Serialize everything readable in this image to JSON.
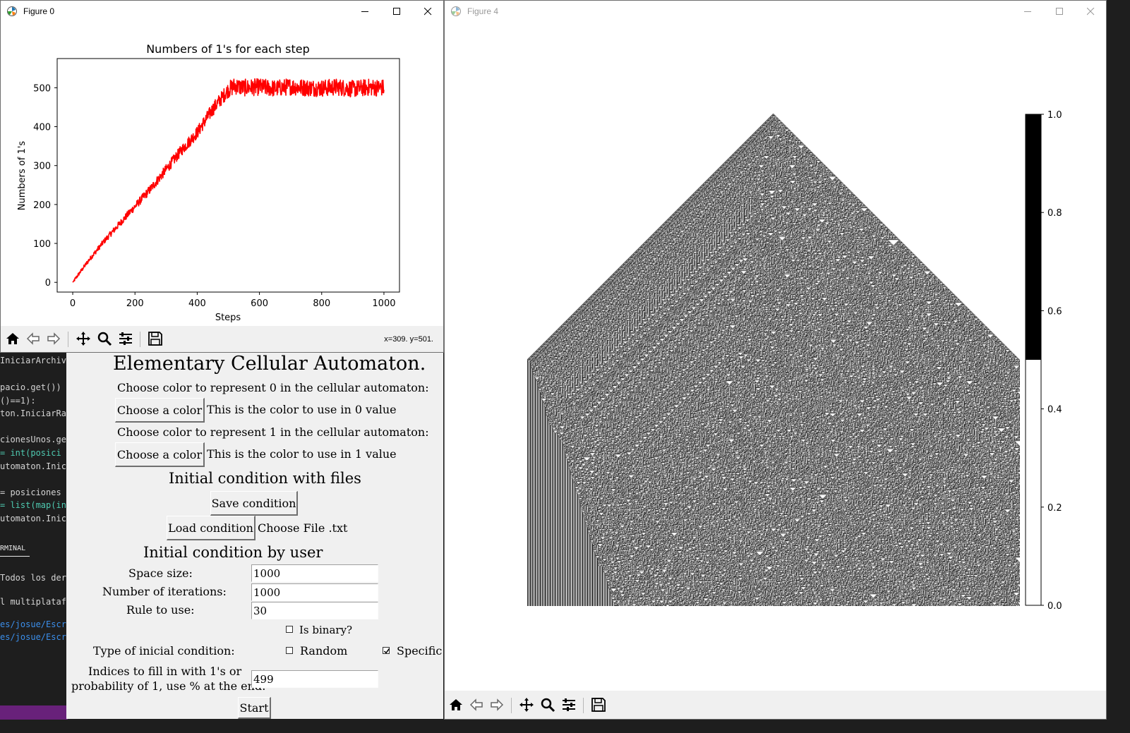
{
  "editor": {
    "code_lines": [
      "IniciarArchiv",
      "",
      "pacio.get())",
      "()==1):",
      "ton.IniciarRa",
      "",
      "cionesUnos.ge",
      " = int(posici",
      "utomaton.Inici",
      "",
      " = posiciones",
      "= list(map(in",
      "utomaton.Inici"
    ],
    "terminal_tab": "RMINAL",
    "terminal_lines": [
      " Todos los der",
      "l multiplatafo",
      "es/josue/Escrit",
      "es/josue/Escrit"
    ]
  },
  "figure0": {
    "title": "Figure 0",
    "chart_data": {
      "type": "line",
      "title": "Numbers of 1's for each step",
      "xlabel": "Steps",
      "ylabel": "Numbers of 1's",
      "xlim": [
        -50,
        1050
      ],
      "ylim": [
        -25,
        575
      ],
      "xticks": [
        0,
        200,
        400,
        600,
        800,
        1000
      ],
      "yticks": [
        0,
        100,
        200,
        300,
        400,
        500
      ],
      "grid": false,
      "color": "#ff0000",
      "series": [
        {
          "x": [
            0,
            50,
            100,
            150,
            200,
            250,
            300,
            350,
            400,
            450,
            500,
            520,
            550,
            600,
            650,
            700,
            750,
            800,
            850,
            900,
            950,
            1000
          ],
          "y": [
            0,
            55,
            105,
            150,
            195,
            240,
            290,
            340,
            385,
            445,
            495,
            505,
            500,
            502,
            498,
            503,
            500,
            499,
            502,
            497,
            501,
            500
          ]
        }
      ]
    },
    "toolbar": {
      "coords": "x=309. y=501.",
      "buttons": [
        "home-icon",
        "back-icon",
        "forward-icon",
        "pan-icon",
        "zoom-icon",
        "configure-icon",
        "save-icon"
      ]
    }
  },
  "figure4": {
    "title": "Figure 4",
    "chart_data": {
      "type": "heatmap",
      "description_rule": 30,
      "space_size": 1000,
      "iterations": 1000,
      "values_range": [
        0.0,
        1.0
      ],
      "colormap": [
        "#ffffff",
        "#000000"
      ],
      "colorbar_ticks": [
        "0.0",
        "0.2",
        "0.4",
        "0.6",
        "0.8",
        "1.0"
      ]
    }
  },
  "gui": {
    "heading": "Elementary Cellular Automaton.",
    "color0_prompt": "Choose color to represent 0 in the cellular automaton:",
    "choose_color_label": "Choose a color",
    "color0_info": "This is the color to use in 0 value",
    "color1_prompt": "Choose color to represent 1 in the cellular automaton:",
    "color1_info": "This is the color to use in 1 value",
    "files_section": "Initial condition with files",
    "save_condition": "Save condition",
    "load_condition": "Load condition",
    "file_label": "Choose File .txt",
    "user_section": "Initial condition by user",
    "space_size_label": "Space size:",
    "space_size_value": "1000",
    "iterations_label": "Number of iterations:",
    "iterations_value": "1000",
    "rule_label": "Rule to use:",
    "rule_value": "30",
    "is_binary_label": "Is binary?",
    "is_binary_checked": false,
    "type_label": "Type of inicial condition:",
    "random_label": "Random",
    "random_checked": false,
    "specific_label": "Specific",
    "specific_checked": true,
    "indices_label_1": "Indices to fill in with 1's or",
    "indices_label_2": "probability of 1, use % at the end:",
    "indices_value": "499",
    "start_label": "Start"
  }
}
